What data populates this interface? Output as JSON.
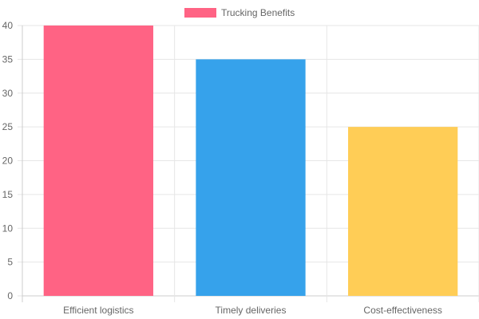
{
  "chart_data": {
    "type": "bar",
    "categories": [
      "Efficient logistics",
      "Timely deliveries",
      "Cost-effectiveness"
    ],
    "series": [
      {
        "name": "Trucking Benefits",
        "values": [
          40,
          35,
          25
        ]
      }
    ],
    "bar_colors": [
      "#ff6384",
      "#36a2eb",
      "#ffcd56"
    ],
    "legend_color": "#ff6384",
    "ylim": [
      0,
      40
    ],
    "yticks": [
      0,
      5,
      10,
      15,
      20,
      25,
      30,
      35,
      40
    ],
    "grid": true,
    "legend_position": "top-center"
  }
}
